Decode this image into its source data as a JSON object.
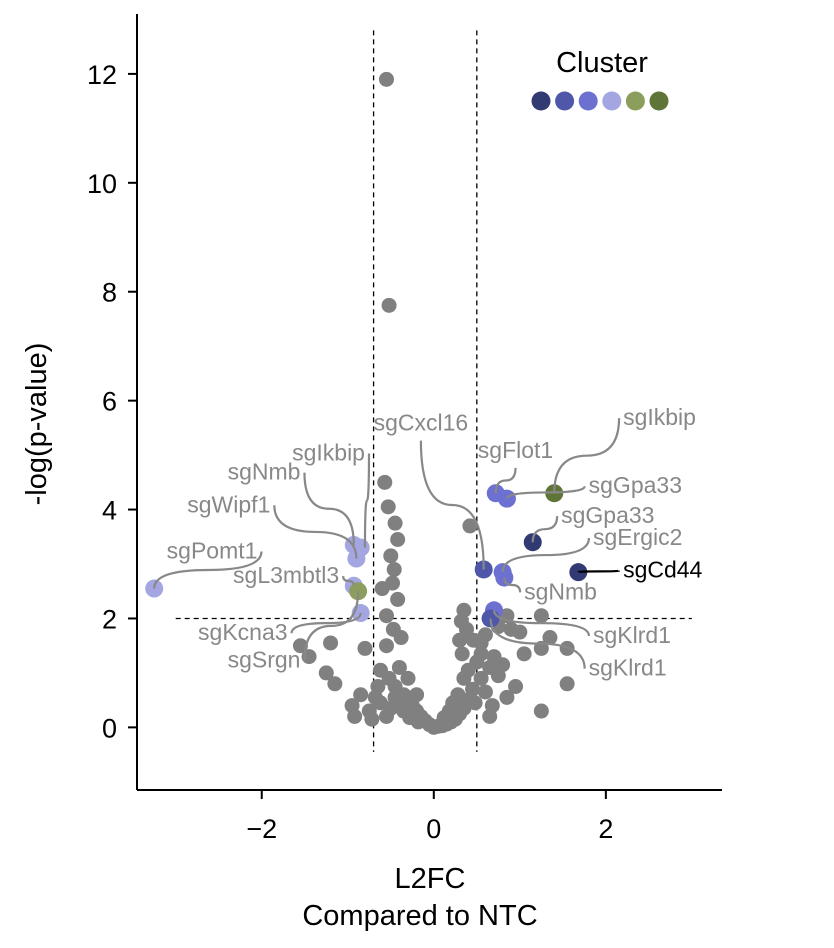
{
  "chart_data": {
    "type": "scatter",
    "title": "",
    "xlabel": "L2FC",
    "xlabel2": "Compared to NTC",
    "ylabel": "-log(p-value)",
    "xlim": [
      -3.45,
      3.35
    ],
    "ylim": [
      -1.15,
      13.1
    ],
    "xticks": [
      -2,
      0,
      2
    ],
    "xtick_labels": [
      "−2",
      "0",
      "2"
    ],
    "yticks": [
      0,
      2,
      4,
      6,
      8,
      10,
      12
    ],
    "ytick_labels": [
      "0",
      "2",
      "4",
      "6",
      "8",
      "10",
      "12"
    ],
    "grid": false,
    "thresholds": {
      "x": [
        -0.7,
        0.5
      ],
      "y": 2.0,
      "hline_x_range": [
        -3.0,
        3.0
      ]
    },
    "legend": {
      "title": "Cluster",
      "placement": "top-right",
      "colors": [
        "#323a73",
        "#4e57a8",
        "#6b70d1",
        "#a3a6e0",
        "#8b9e5b",
        "#5f7437"
      ]
    },
    "colors": {
      "background_points": "#808080",
      "label_gray": "#888888",
      "label_black": "#000000"
    },
    "background_points": [
      [
        -0.55,
        11.9
      ],
      [
        -0.52,
        7.75
      ],
      [
        -0.57,
        4.5
      ],
      [
        -0.53,
        4.05
      ],
      [
        -0.45,
        3.75
      ],
      [
        -0.42,
        3.45
      ],
      [
        -0.5,
        3.15
      ],
      [
        -0.46,
        2.9
      ],
      [
        -0.48,
        2.65
      ],
      [
        -0.6,
        2.55
      ],
      [
        -0.42,
        2.35
      ],
      [
        -0.55,
        2.05
      ],
      [
        -0.47,
        1.8
      ],
      [
        -0.38,
        1.65
      ],
      [
        -0.55,
        1.5
      ],
      [
        -0.8,
        1.45
      ],
      [
        -1.2,
        1.55
      ],
      [
        -1.55,
        1.5
      ],
      [
        -1.45,
        1.3
      ],
      [
        -1.25,
        1.0
      ],
      [
        -1.15,
        0.8
      ],
      [
        -0.62,
        1.05
      ],
      [
        -0.52,
        0.9
      ],
      [
        -0.45,
        0.75
      ],
      [
        -0.4,
        1.1
      ],
      [
        -0.35,
        0.6
      ],
      [
        -0.3,
        0.5
      ],
      [
        -0.25,
        0.4
      ],
      [
        -0.2,
        0.3
      ],
      [
        -0.15,
        0.2
      ],
      [
        -0.1,
        0.12
      ],
      [
        -0.05,
        0.05
      ],
      [
        -0.45,
        0.55
      ],
      [
        -0.5,
        0.35
      ],
      [
        -0.55,
        0.2
      ],
      [
        -0.62,
        0.45
      ],
      [
        -0.75,
        0.3
      ],
      [
        -0.85,
        0.6
      ],
      [
        -0.95,
        0.4
      ],
      [
        -0.92,
        0.2
      ],
      [
        -0.72,
        0.15
      ],
      [
        -0.3,
        0.9
      ],
      [
        -0.35,
        0.3
      ],
      [
        -0.2,
        0.6
      ],
      [
        -0.28,
        0.18
      ],
      [
        -0.18,
        0.1
      ],
      [
        -0.65,
        0.75
      ],
      [
        -0.68,
        0.55
      ],
      [
        -0.4,
        0.45
      ],
      [
        0.42,
        3.7
      ],
      [
        0.35,
        2.15
      ],
      [
        0.32,
        1.95
      ],
      [
        0.38,
        1.8
      ],
      [
        0.3,
        1.6
      ],
      [
        0.55,
        1.55
      ],
      [
        0.6,
        1.7
      ],
      [
        0.75,
        1.85
      ],
      [
        0.85,
        2.05
      ],
      [
        0.9,
        1.8
      ],
      [
        1.0,
        1.75
      ],
      [
        1.35,
        1.65
      ],
      [
        1.25,
        1.45
      ],
      [
        1.05,
        1.35
      ],
      [
        1.25,
        2.05
      ],
      [
        1.55,
        1.45
      ],
      [
        1.55,
        0.8
      ],
      [
        1.25,
        0.3
      ],
      [
        0.95,
        0.75
      ],
      [
        0.85,
        0.55
      ],
      [
        0.75,
        0.95
      ],
      [
        0.65,
        1.1
      ],
      [
        0.55,
        0.9
      ],
      [
        0.5,
        1.2
      ],
      [
        0.45,
        0.7
      ],
      [
        0.4,
        0.5
      ],
      [
        0.35,
        0.35
      ],
      [
        0.3,
        0.25
      ],
      [
        0.25,
        0.15
      ],
      [
        0.2,
        0.1
      ],
      [
        0.15,
        0.06
      ],
      [
        0.1,
        0.03
      ],
      [
        0.05,
        0.02
      ],
      [
        0.0,
        0.0
      ],
      [
        0.28,
        0.6
      ],
      [
        0.35,
        0.9
      ],
      [
        0.4,
        1.05
      ],
      [
        0.48,
        0.45
      ],
      [
        0.6,
        0.65
      ],
      [
        0.68,
        0.4
      ],
      [
        0.22,
        0.45
      ],
      [
        0.18,
        0.3
      ],
      [
        0.12,
        0.18
      ],
      [
        0.55,
        1.35
      ],
      [
        0.7,
        1.3
      ],
      [
        0.8,
        1.15
      ],
      [
        0.33,
        1.35
      ],
      [
        0.46,
        1.6
      ],
      [
        0.65,
        0.2
      ]
    ],
    "highlighted_points": [
      {
        "x": -3.25,
        "y": 2.55,
        "color": "#a3a6e0"
      },
      {
        "x": -0.93,
        "y": 3.35,
        "color": "#a3a6e0"
      },
      {
        "x": -0.85,
        "y": 3.3,
        "color": "#a3a6e0"
      },
      {
        "x": -0.9,
        "y": 3.1,
        "color": "#a3a6e0"
      },
      {
        "x": -0.93,
        "y": 2.6,
        "color": "#a3a6e0"
      },
      {
        "x": -0.88,
        "y": 2.5,
        "color": "#8b9e5b"
      },
      {
        "x": -0.85,
        "y": 2.1,
        "color": "#a3a6e0"
      },
      {
        "x": 0.58,
        "y": 2.9,
        "color": "#4e57a8"
      },
      {
        "x": 0.72,
        "y": 4.3,
        "color": "#6b70d1"
      },
      {
        "x": 0.85,
        "y": 4.2,
        "color": "#6b70d1"
      },
      {
        "x": 1.4,
        "y": 4.3,
        "color": "#5f7437"
      },
      {
        "x": 1.15,
        "y": 3.4,
        "color": "#323a73"
      },
      {
        "x": 1.68,
        "y": 2.85,
        "color": "#323a73"
      },
      {
        "x": 0.8,
        "y": 2.85,
        "color": "#6b70d1"
      },
      {
        "x": 0.82,
        "y": 2.75,
        "color": "#6b70d1"
      },
      {
        "x": 0.7,
        "y": 2.15,
        "color": "#6b70d1"
      },
      {
        "x": 0.66,
        "y": 2.0,
        "color": "#4e57a8"
      }
    ],
    "annotations": [
      {
        "text": "sgIkbip",
        "color": "#888888",
        "anchor": "end",
        "tx": -0.8,
        "ty": 4.9,
        "px": -0.8,
        "py": 3.3
      },
      {
        "text": "sgNmb",
        "color": "#888888",
        "anchor": "end",
        "tx": -1.55,
        "ty": 4.55,
        "px": -0.93,
        "py": 3.35
      },
      {
        "text": "sgWipf1",
        "color": "#888888",
        "anchor": "end",
        "tx": -1.9,
        "ty": 3.95,
        "px": -0.9,
        "py": 3.1
      },
      {
        "text": "sgPomt1",
        "color": "#888888",
        "anchor": "end",
        "tx": -2.05,
        "ty": 3.1,
        "px": -3.25,
        "py": 2.55
      },
      {
        "text": "sgL3mbtl3",
        "color": "#888888",
        "anchor": "end",
        "tx": -1.1,
        "ty": 2.65,
        "px": -0.93,
        "py": 2.6
      },
      {
        "text": "sgKcna3",
        "color": "#888888",
        "anchor": "end",
        "tx": -1.7,
        "ty": 1.6,
        "px": -0.85,
        "py": 2.1
      },
      {
        "text": "sgSrgn",
        "color": "#888888",
        "anchor": "end",
        "tx": -1.55,
        "ty": 1.1,
        "px": -0.88,
        "py": 2.5
      },
      {
        "text": "sgCxcl16",
        "color": "#888888",
        "anchor": "middle",
        "tx": -0.15,
        "ty": 5.45,
        "px": 0.58,
        "py": 2.9
      },
      {
        "text": "sgFlot1",
        "color": "#888888",
        "anchor": "middle",
        "tx": 0.95,
        "ty": 4.95,
        "px": 0.72,
        "py": 4.3
      },
      {
        "text": "sgIkbip",
        "color": "#888888",
        "anchor": "start",
        "tx": 2.2,
        "ty": 5.55,
        "px": 1.4,
        "py": 4.3
      },
      {
        "text": "sgGpa33",
        "color": "#888888",
        "anchor": "start",
        "tx": 1.8,
        "ty": 4.3,
        "px": 0.85,
        "py": 4.2
      },
      {
        "text": "sgGpa33",
        "color": "#888888",
        "anchor": "start",
        "tx": 1.48,
        "ty": 3.75,
        "px": 1.15,
        "py": 3.4
      },
      {
        "text": "sgErgic2",
        "color": "#888888",
        "anchor": "start",
        "tx": 1.85,
        "ty": 3.35,
        "px": 0.8,
        "py": 2.85
      },
      {
        "text": "sgCd44",
        "color": "#000000",
        "anchor": "start",
        "tx": 2.2,
        "ty": 2.75,
        "px": 1.68,
        "py": 2.85
      },
      {
        "text": "sgNmb",
        "color": "#888888",
        "anchor": "start",
        "tx": 1.05,
        "ty": 2.35,
        "px": 0.82,
        "py": 2.75
      },
      {
        "text": "sgKlrd1",
        "color": "#888888",
        "anchor": "start",
        "tx": 1.85,
        "ty": 1.55,
        "px": 0.7,
        "py": 2.15
      },
      {
        "text": "sgKlrd1",
        "color": "#888888",
        "anchor": "start",
        "tx": 1.8,
        "ty": 0.95,
        "px": 0.66,
        "py": 2.0
      }
    ]
  }
}
